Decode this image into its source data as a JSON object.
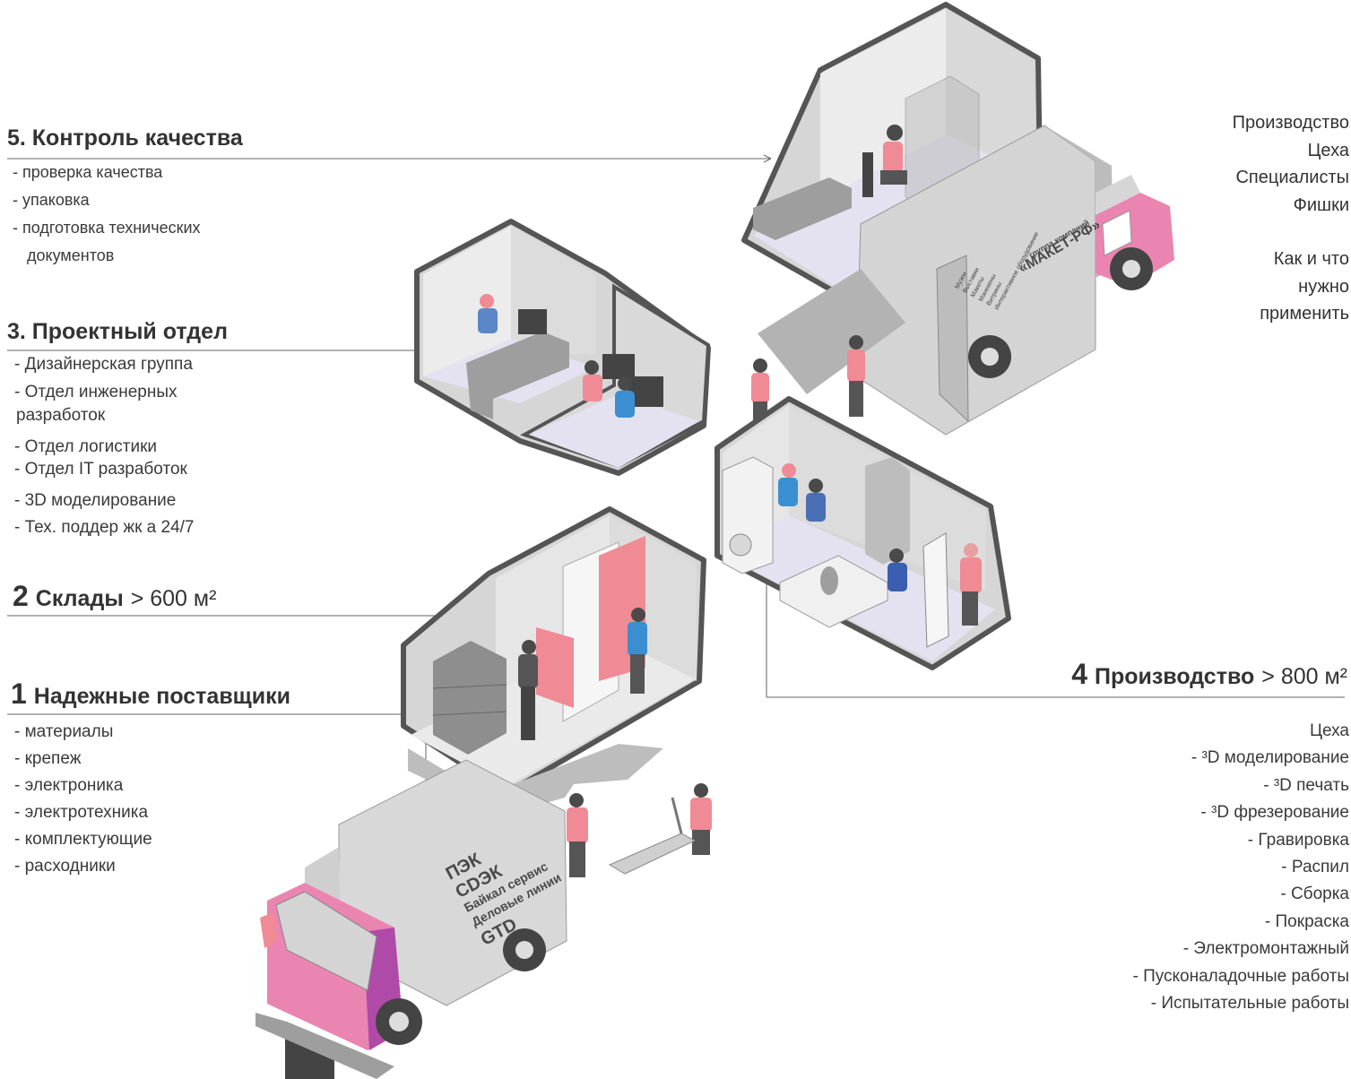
{
  "sections": {
    "s5": {
      "title": "5. Контроль качества",
      "items": [
        "- проверка качества",
        "- упаковка",
        "- подготовка технических",
        "документов"
      ]
    },
    "s3": {
      "title": "3. Проектный отдел",
      "items": [
        "- Дизайнерская группа",
        "- Отдел инженерных",
        "разработок",
        "- Отдел логистики",
        "- Отдел IT разработок",
        "- 3D моделирование",
        "- Тех. поддер жк а 24/7"
      ]
    },
    "s2": {
      "num": "2",
      "title": "Склады",
      "area": "> 600 м²"
    },
    "s1": {
      "num": "1",
      "title": "Надежные поставщики",
      "items": [
        "- материалы",
        "- крепеж",
        "- электроника",
        "- электротехника",
        "- комплектующие",
        "- расходники"
      ]
    },
    "s4": {
      "num": "4",
      "title": "Производство",
      "area": "> 800 м²",
      "items": [
        "Цеха",
        "- ³D моделирование",
        "- ³D печать",
        "- ³D фрезерование",
        "- Гравировка",
        "- Распил",
        "- Сборка",
        "- Покраска",
        "- Электромонтажный",
        "- Пусконаладочные работы",
        "- Испытательные работы"
      ]
    }
  },
  "right_top": {
    "lines": [
      "Производство",
      "Цеха",
      "Специалисты",
      "Фишки",
      "",
      "Как и что",
      "нужно",
      "применить"
    ]
  },
  "truck_front": {
    "lines": [
      "ПЭК",
      "CDЭК",
      "Байкал сервис",
      "Деловые линии",
      "GTD"
    ]
  },
  "truck_back": {
    "brand_small": "группа компаний",
    "brand": "«МАКЕТ-РФ»",
    "side_lines": [
      "Музеи",
      "Выставки",
      "Макеты",
      "Манекены",
      "Витрины",
      "Интерактивное оборудование"
    ]
  },
  "colors": {
    "pink": "#f08a94",
    "magenta": "#b04aa8",
    "grey": "#c8c8c8",
    "dark": "#4a4a4a",
    "floor": "#e6e4f2"
  }
}
